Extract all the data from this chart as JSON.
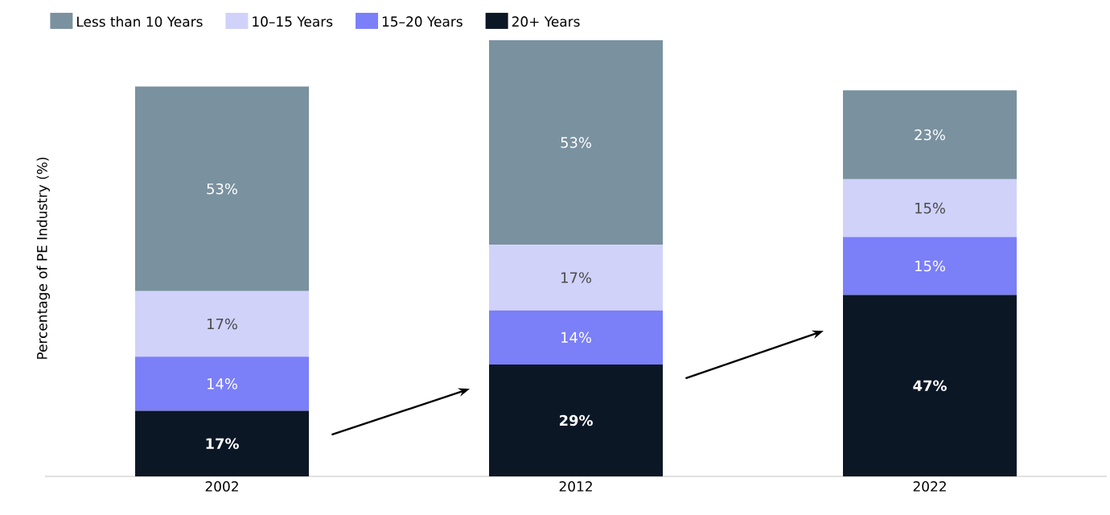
{
  "chart_data": {
    "type": "bar",
    "stacked": true,
    "ylabel": "Percentage of PE Industry (%)",
    "categories": [
      "2002",
      "2012",
      "2022"
    ],
    "legend": "top",
    "series": [
      {
        "name": "20+ Years",
        "color": "#0c1726",
        "values": [
          17,
          29,
          47
        ],
        "value_labels": [
          "17%",
          "29%",
          "47%"
        ]
      },
      {
        "name": "15–20 Years",
        "color": "#7b7ff8",
        "values": [
          14,
          14,
          15
        ],
        "value_labels": [
          "14%",
          "14%",
          "15%"
        ]
      },
      {
        "name": "10–15 Years",
        "color": "#d0d2fa",
        "values": [
          17,
          17,
          15
        ],
        "value_labels": [
          "17%",
          "17%",
          "15%"
        ]
      },
      {
        "name": "Less than 10 Years",
        "color": "#7a919f",
        "values": [
          53,
          53,
          23
        ],
        "value_labels": [
          "53%",
          "53%",
          "23%"
        ]
      }
    ]
  }
}
